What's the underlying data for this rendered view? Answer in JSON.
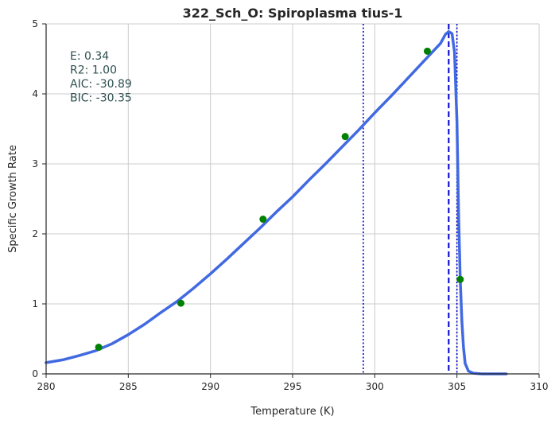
{
  "chart_data": {
    "type": "line",
    "title": "322_Sch_O: Spiroplasma tius-1",
    "xlabel": "Temperature (K)",
    "ylabel": "Specific Growth Rate",
    "xlim": [
      280,
      310
    ],
    "ylim": [
      0,
      5
    ],
    "xticks": [
      "280",
      "285",
      "290",
      "295",
      "300",
      "305",
      "310"
    ],
    "yticks": [
      "0",
      "1",
      "2",
      "3",
      "4",
      "5"
    ],
    "grid": true,
    "colors": {
      "curve": "#4169e1",
      "points": "#008000",
      "vlines": "#0000cd",
      "stats_text": "#2f4f4f",
      "grid": "#cccccc"
    },
    "stats": [
      {
        "label": "E:",
        "value": "0.34"
      },
      {
        "label": "R2:",
        "value": "1.00"
      },
      {
        "label": "AIC:",
        "value": "-30.89"
      },
      {
        "label": "BIC:",
        "value": "-30.35"
      }
    ],
    "fitted_curve": {
      "x": [
        280,
        281,
        282,
        283,
        284,
        285,
        286,
        287,
        288,
        289,
        290,
        291,
        292,
        293,
        294,
        295,
        296,
        297,
        298,
        299,
        300,
        301,
        302,
        303,
        304,
        304.3,
        304.5,
        304.7,
        304.85,
        305,
        305.1,
        305.2,
        305.3,
        305.4,
        305.5,
        305.7,
        306,
        306.5,
        307,
        308
      ],
      "y": [
        0.16,
        0.2,
        0.26,
        0.33,
        0.43,
        0.56,
        0.71,
        0.88,
        1.04,
        1.23,
        1.43,
        1.64,
        1.86,
        2.08,
        2.31,
        2.53,
        2.77,
        3.0,
        3.24,
        3.48,
        3.73,
        3.97,
        4.22,
        4.47,
        4.72,
        4.85,
        4.89,
        4.86,
        4.6,
        3.6,
        2.3,
        1.35,
        0.75,
        0.38,
        0.15,
        0.04,
        0.01,
        0.0,
        0.0,
        0.0
      ]
    },
    "data_points": {
      "x": [
        283.2,
        288.2,
        293.2,
        298.2,
        303.2,
        305.2
      ],
      "y": [
        0.38,
        1.01,
        2.21,
        3.39,
        4.61,
        1.35
      ]
    },
    "vertical_lines": [
      {
        "x": 299.3,
        "style": "dotted"
      },
      {
        "x": 304.5,
        "style": "dashed"
      },
      {
        "x": 305.0,
        "style": "dotted"
      }
    ]
  }
}
